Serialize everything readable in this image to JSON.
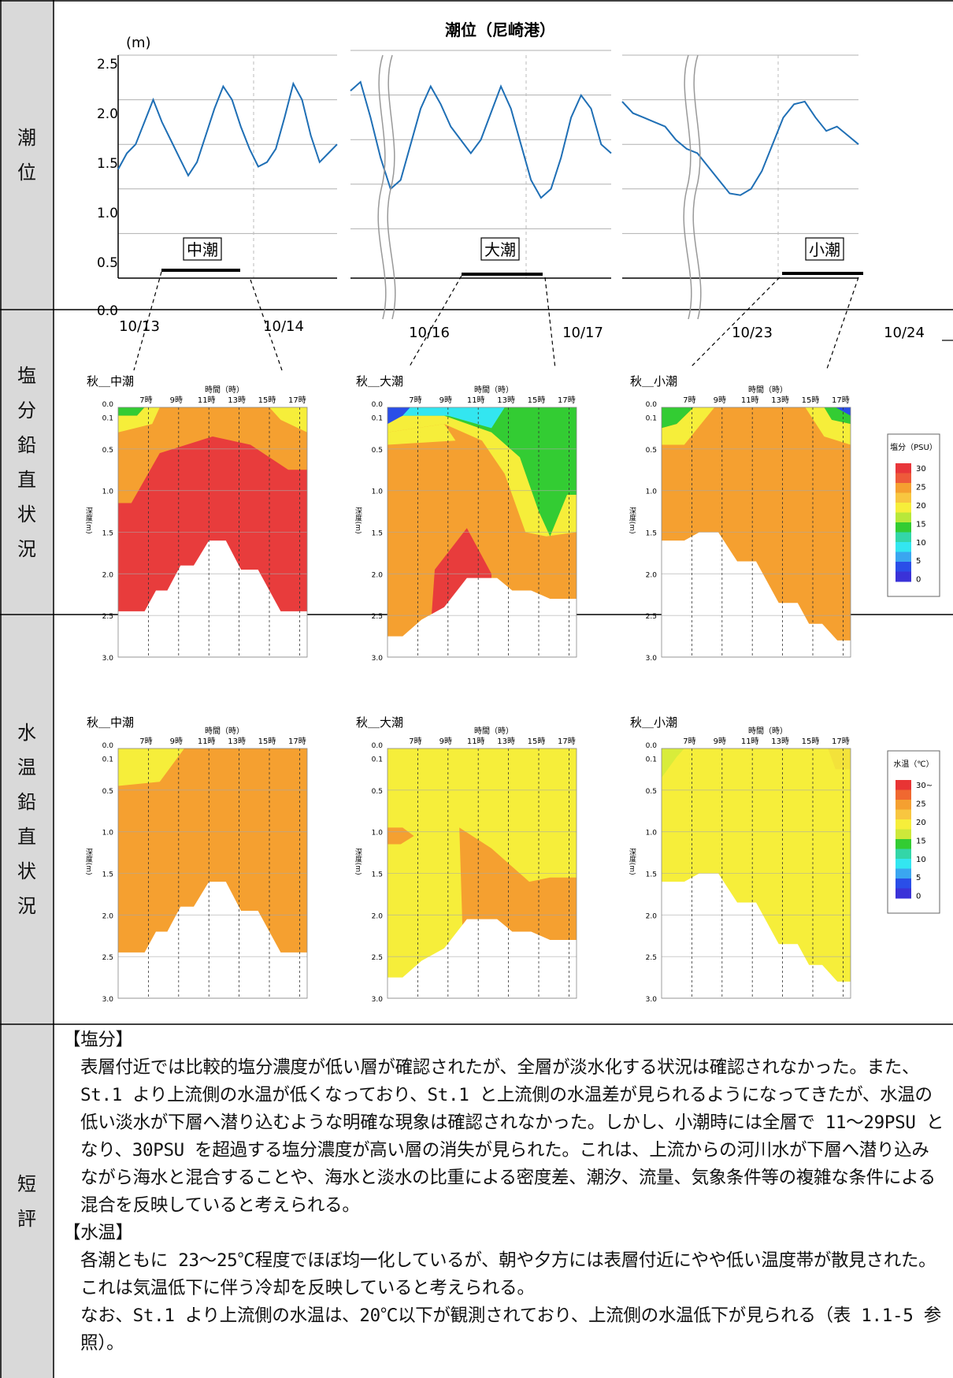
{
  "row_labels": {
    "tide": [
      "潮",
      "位"
    ],
    "salinity": [
      "塩",
      "分",
      "鉛",
      "直",
      "状",
      "況"
    ],
    "temperature": [
      "水",
      "温",
      "鉛",
      "直",
      "状",
      "況"
    ],
    "comment": [
      "短",
      "評"
    ]
  },
  "tide_chart": {
    "title": "潮位（尼崎港）",
    "unit": "(m)",
    "y_ticks": [
      "2.5",
      "2.0",
      "1.5",
      "1.0",
      "0.5",
      "0.0"
    ],
    "x_labels": [
      "10/13",
      "10/14",
      "10/16",
      "10/17",
      "10/23",
      "10/24"
    ],
    "tide_names": [
      "中潮",
      "大潮",
      "小潮"
    ]
  },
  "chart_data": [
    {
      "type": "line",
      "title": "潮位（尼崎港）",
      "ylabel": "(m)",
      "ylim": [
        0,
        2.5
      ],
      "segments": [
        {
          "x_range": [
            "10/13",
            "10/14"
          ],
          "values": [
            1.22,
            1.4,
            1.5,
            1.75,
            2.0,
            1.75,
            1.55,
            1.35,
            1.15,
            1.3,
            1.6,
            1.9,
            2.15,
            2.0,
            1.7,
            1.45,
            1.25,
            1.3,
            1.45,
            1.8,
            2.18,
            2.0,
            1.6,
            1.3,
            1.4,
            1.5
          ]
        },
        {
          "x_range": [
            "10/16",
            "10/17"
          ],
          "values": [
            2.1,
            2.2,
            1.8,
            1.35,
            1.0,
            1.1,
            1.5,
            1.9,
            2.15,
            1.95,
            1.7,
            1.55,
            1.4,
            1.55,
            1.85,
            2.15,
            1.9,
            1.5,
            1.1,
            0.9,
            1.0,
            1.35,
            1.8,
            2.05,
            1.9,
            1.5,
            1.4
          ]
        },
        {
          "x_range": [
            "10/23",
            "10/24"
          ],
          "values": [
            1.98,
            1.85,
            1.8,
            1.75,
            1.7,
            1.55,
            1.45,
            1.4,
            1.25,
            1.1,
            0.95,
            0.93,
            1.0,
            1.2,
            1.5,
            1.8,
            1.95,
            1.98,
            1.8,
            1.65,
            1.7,
            1.6,
            1.5
          ]
        }
      ]
    },
    {
      "type": "heatmap",
      "title": "塩分",
      "panels": [
        "秋＿中潮",
        "秋＿大潮",
        "秋＿小潮"
      ],
      "x": [
        "7時",
        "9時",
        "11時",
        "13時",
        "15時",
        "17時"
      ],
      "ylabel": "深度 (m)",
      "ylim": [
        0,
        3.0
      ],
      "legend_title": "塩分（PSU）",
      "legend_ticks": [
        30,
        25,
        20,
        15,
        10,
        5,
        0
      ]
    },
    {
      "type": "heatmap",
      "title": "水温",
      "panels": [
        "秋＿中潮",
        "秋＿大潮",
        "秋＿小潮"
      ],
      "x": [
        "7時",
        "9時",
        "11時",
        "13時",
        "15時",
        "17時"
      ],
      "ylabel": "深度 (m)",
      "ylim": [
        0,
        3.0
      ],
      "legend_title": "水温（℃）",
      "legend_ticks": [
        "30~",
        "25",
        "20",
        "15",
        "10",
        "5",
        "0"
      ]
    }
  ],
  "panels": {
    "salinity_titles": [
      "秋＿中潮",
      "秋＿大潮",
      "秋＿小潮"
    ],
    "temperature_titles": [
      "秋＿中潮",
      "秋＿大潮",
      "秋＿小潮"
    ],
    "time_header": "時間（時）",
    "hours": [
      "7時",
      "9時",
      "11時",
      "13時",
      "15時",
      "17時"
    ],
    "depth_ticks": [
      "0.0",
      "0.1",
      "0.5",
      "1.0",
      "1.5",
      "2.0",
      "2.5",
      "3.0"
    ],
    "depth_label": "深度(m)",
    "sal_legend_title": "塩分（PSU）",
    "sal_legend_ticks": [
      "30",
      "25",
      "20",
      "15",
      "10",
      "5",
      "0"
    ],
    "temp_legend_title": "水温（℃）",
    "temp_legend_ticks": [
      "30~",
      "25",
      "20",
      "15",
      "10",
      "5",
      "0"
    ]
  },
  "comment": {
    "h1": "【塩分】",
    "p1": "表層付近では比較的塩分濃度が低い層が確認されたが、全層が淡水化する状況は確認されなかった。また、St.1 より上流側の水温が低くなっており、St.1 と上流側の水温差が見られるようになってきたが、水温の低い淡水が下層へ潜り込むような明確な現象は確認されなかった。しかし、小潮時には全層で 11～29PSU となり、30PSU を超過する塩分濃度が高い層の消失が見られた。これは、上流からの河川水が下層へ潜り込みながら海水と混合することや、海水と淡水の比重による密度差、潮汐、流量、気象条件等の複雑な条件による混合を反映していると考えられる。",
    "h2": "【水温】",
    "p2": "各潮ともに 23～25℃程度でほぼ均一化しているが、朝や夕方には表層付近にやや低い温度帯が散見された。これは気温低下に伴う冷却を反映していると考えられる。",
    "p3": "なお、St.1 より上流側の水温は、20℃以下が観測されており、上流側の水温低下が見られる（表 1.1-5 参照）。"
  },
  "colors": {
    "label_bg": "#d9d9d9",
    "tide_line": "#1f6fb5",
    "red": "#e83c3c",
    "orange": "#f5a030",
    "yellow": "#f6ee3a",
    "green": "#33cc33",
    "cyan": "#33e6f0",
    "blue": "#2a4ee8"
  }
}
